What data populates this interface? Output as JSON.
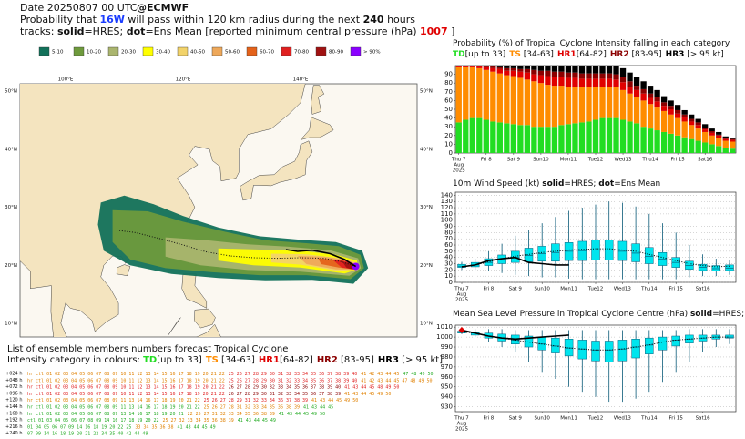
{
  "header": {
    "date": "Date 20250807 00 UTC",
    "source": "@ECMWF",
    "lines": [
      [
        {
          "text": "Probability that "
        },
        {
          "text": "16W",
          "bold": true,
          "color": "#1a3cff"
        },
        {
          "text": " will pass within 120 km radius during the next "
        },
        {
          "text": "240",
          "bold": true
        },
        {
          "text": " hours"
        }
      ],
      [
        {
          "text": "tracks: "
        },
        {
          "text": "solid",
          "bold": true
        },
        {
          "text": "=HRES; "
        },
        {
          "text": "dot",
          "bold": true
        },
        {
          "text": "=Ens Mean [reported minimum central pressure (hPa) "
        },
        {
          "text": "1007",
          "bold": true,
          "color": "#e00000"
        },
        {
          "text": " ]"
        }
      ]
    ]
  },
  "legend": [
    {
      "label": "5-10",
      "color": "#12715a"
    },
    {
      "label": "10-20",
      "color": "#6e9a3c"
    },
    {
      "label": "20-30",
      "color": "#aab56e"
    },
    {
      "label": "30-40",
      "color": "#ffff00"
    },
    {
      "label": "40-50",
      "color": "#f2d36a"
    },
    {
      "label": "50-60",
      "color": "#eea85a"
    },
    {
      "label": "60-70",
      "color": "#e4621a"
    },
    {
      "label": "70-80",
      "color": "#e02020"
    },
    {
      "label": "80-90",
      "color": "#a01212"
    },
    {
      "label": "> 90%",
      "color": "#8a00ff"
    }
  ],
  "map": {
    "lon_labels": [
      "100°E",
      "120°E",
      "140°E"
    ],
    "lat_labels": [
      "50°N",
      "40°N",
      "30°N",
      "20°N",
      "10°N"
    ]
  },
  "members_list": {
    "title": "List of ensemble members numbers forecast Tropical Cyclone",
    "legend_label": "Intensity category in colours: ",
    "rows": [
      {
        "lead": "+024 h",
        "segments": [
          {
            "text": "hr ctl 01 02 03 04 05 06 07 08 09 10 11 12 13 14 15 16 17 18 19 20 21 22",
            "color": "#e08000"
          },
          {
            "text": "25 26 27 28 29 30 31 32 33 34 35 36 37 38 39 40",
            "color": "#e02020"
          },
          {
            "text": "41 42 43 44 45",
            "color": "#e08000"
          },
          {
            "text": "47 48 49 50",
            "color": "#22aa22"
          }
        ]
      },
      {
        "lead": "+048 h",
        "segments": [
          {
            "text": "hr ctl 01 02 03 04 05 06 07 08 09 10 11 12 13 14 15 16 17 18 19 20 21 22",
            "color": "#e08000"
          },
          {
            "text": "25 26 27 28 29 30 31 32 33 34 35 36 37 38 39 40",
            "color": "#e02020"
          },
          {
            "text": "41 42 43 44 45 47 48 49 50",
            "color": "#e08000"
          }
        ]
      },
      {
        "lead": "+072 h",
        "segments": [
          {
            "text": "hr ctl 01 02 03 04 05 06 07 08 09 10 11 12 13 14 15 16 17 18 19 20 21 22",
            "color": "#e02020"
          },
          {
            "text": "26 27 28 29 30 32 33 34 35 36 37 38 39 40",
            "color": "#8b0000"
          },
          {
            "text": "41 43 44 45 48 49 50",
            "color": "#e02020"
          }
        ]
      },
      {
        "lead": "+096 h",
        "segments": [
          {
            "text": "hr ctl 01 02 03 04 05 06 07 08 09 10 11 12 13 14 15 16 17 18 19 20 21 22",
            "color": "#e02020"
          },
          {
            "text": "26 27 28 29 30 31 32 33 34 35 36 37 38 39",
            "color": "#8b0000"
          },
          {
            "text": "41 43 44 45 49 50",
            "color": "#e08000"
          }
        ]
      },
      {
        "lead": "+120 h",
        "segments": [
          {
            "text": "hr ctl 01 02 03 04 05 06 07 08 09 11 13 14 16 17 18 19 20 21 22",
            "color": "#e08000"
          },
          {
            "text": "25 26 27 28 29 31 32 33 34 36 37 38 39",
            "color": "#e02020"
          },
          {
            "text": "41 43 44 45 49 50",
            "color": "#e08000"
          }
        ]
      },
      {
        "lead": "+144 h",
        "segments": [
          {
            "text": "hr ctl 01 02 03 04 05 06 07 08 09 11 13 14 16 17 18 19 20 21 22",
            "color": "#22aa22"
          },
          {
            "text": "25 26 27 28 31 32 33 34 35 36 38 39",
            "color": "#e08000"
          },
          {
            "text": "41 43 44 45",
            "color": "#22aa22"
          }
        ]
      },
      {
        "lead": "+168 h",
        "segments": [
          {
            "text": "hr ctl 01 02 03 04 05 06 07 08 09 13 14 16 17 18 19 20 21",
            "color": "#22aa22"
          },
          {
            "text": "22 25 27 31 32 33 34 35 36 38 39",
            "color": "#e08000"
          },
          {
            "text": "41 43 44 45 49 50",
            "color": "#22aa22"
          }
        ]
      },
      {
        "lead": "+192 h",
        "segments": [
          {
            "text": "ctl 01 03 04 05 06 07 08 09 14 16 17 18 19 20 22",
            "color": "#22aa22"
          },
          {
            "text": "25 27 32 33 34 35 36 38 39",
            "color": "#e08000"
          },
          {
            "text": "41 43 44 45 49",
            "color": "#22aa22"
          }
        ]
      },
      {
        "lead": "+216 h",
        "segments": [
          {
            "text": "01 04 05 06 07 09 14 16 18 19 20 22 25",
            "color": "#22aa22"
          },
          {
            "text": "33 34 35 36 38",
            "color": "#e08000"
          },
          {
            "text": "41 43 44 45 49",
            "color": "#22aa22"
          }
        ]
      },
      {
        "lead": "+240 h",
        "segments": [
          {
            "text": "07 09 14 16 18 19 20 21 22 34 35 40 42 44 49",
            "color": "#22aa22"
          }
        ]
      }
    ]
  },
  "chart_data": [
    {
      "type": "stacked_bar",
      "title_runs": [
        {
          "text": "Probability (%) of Tropical Cyclone Intensity falling in each category"
        }
      ],
      "categories": [
        "Thu 7",
        null,
        null,
        null,
        "Fri 8",
        null,
        null,
        null,
        "Sat 9",
        null,
        null,
        null,
        "Sun10",
        null,
        null,
        null,
        "Mon11",
        null,
        null,
        null,
        "Tue12",
        null,
        null,
        null,
        "Wed13",
        null,
        null,
        null,
        "Thu14",
        null,
        null,
        null,
        "Fri 15",
        null,
        null,
        null,
        "Sat16",
        null,
        null,
        null,
        null
      ],
      "date_sublabels": [
        "Aug",
        "2025"
      ],
      "highlight_categories": [
        "Sun10"
      ],
      "highlight_color": "#ff0000",
      "ylim": [
        0,
        100
      ],
      "yticks": [
        0,
        10,
        20,
        30,
        40,
        50,
        60,
        70,
        80,
        90
      ],
      "grid": false,
      "series": [
        {
          "name": "TD",
          "range": "[up to 33]",
          "color": "#22dd22",
          "values": [
            35,
            38,
            40,
            40,
            38,
            36,
            35,
            34,
            33,
            32,
            32,
            30,
            30,
            30,
            30,
            32,
            33,
            34,
            35,
            36,
            38,
            40,
            40,
            40,
            38,
            36,
            34,
            30,
            28,
            26,
            24,
            22,
            20,
            18,
            16,
            14,
            12,
            10,
            8,
            6,
            5
          ]
        },
        {
          "name": "TS",
          "range": " [34-63]",
          "color": "#ff8c00",
          "values": [
            63,
            60,
            58,
            57,
            57,
            57,
            56,
            55,
            55,
            54,
            52,
            52,
            50,
            48,
            47,
            45,
            43,
            42,
            40,
            39,
            38,
            36,
            36,
            35,
            34,
            32,
            30,
            30,
            28,
            26,
            24,
            22,
            20,
            18,
            16,
            14,
            12,
            10,
            9,
            8,
            8
          ]
        },
        {
          "name": "HR1",
          "range": "[64-82]",
          "color": "#e00000",
          "values": [
            2,
            2,
            2,
            3,
            3,
            4,
            5,
            5,
            6,
            7,
            8,
            8,
            9,
            10,
            10,
            10,
            10,
            10,
            10,
            10,
            9,
            9,
            9,
            9,
            9,
            8,
            8,
            8,
            7,
            7,
            6,
            6,
            5,
            5,
            4,
            4,
            3,
            3,
            3,
            2,
            2
          ]
        },
        {
          "name": "HR2",
          "range": " [83-95]",
          "color": "#8b0000",
          "values": [
            0,
            0,
            0,
            0,
            1,
            2,
            2,
            3,
            3,
            3,
            4,
            5,
            5,
            6,
            6,
            6,
            6,
            6,
            6,
            6,
            6,
            6,
            6,
            6,
            6,
            6,
            5,
            5,
            5,
            5,
            4,
            4,
            4,
            3,
            3,
            3,
            2,
            2,
            1,
            1,
            1
          ]
        },
        {
          "name": "HR3",
          "range": " [> 95 kt]",
          "color": "#000000",
          "values": [
            0,
            0,
            0,
            0,
            1,
            1,
            2,
            3,
            3,
            4,
            4,
            5,
            6,
            6,
            7,
            7,
            8,
            8,
            9,
            9,
            9,
            9,
            9,
            10,
            10,
            10,
            10,
            9,
            9,
            8,
            7,
            6,
            6,
            5,
            5,
            4,
            4,
            3,
            3,
            2,
            1
          ]
        }
      ]
    },
    {
      "type": "box",
      "title_runs": [
        {
          "text": "10m Wind Speed (kt) "
        },
        {
          "text": "solid",
          "bold": true
        },
        {
          "text": "=HRES; "
        },
        {
          "text": "dot",
          "bold": true
        },
        {
          "text": "=Ens Mean"
        }
      ],
      "categories": [
        "Thu 7",
        null,
        "Fri 8",
        null,
        "Sat 9",
        null,
        "Sun10",
        null,
        "Mon11",
        null,
        "Tue12",
        null,
        "Wed13",
        null,
        "Thu14",
        null,
        "Fri 15",
        null,
        "Sat16",
        null,
        null
      ],
      "date_sublabels": [
        "Aug",
        "2025"
      ],
      "highlight_categories": [
        "Sun10"
      ],
      "highlight_color": "#ff0000",
      "ylim": [
        0,
        145
      ],
      "yticks": [
        0,
        10,
        20,
        30,
        40,
        50,
        60,
        70,
        80,
        90,
        100,
        110,
        120,
        130,
        140
      ],
      "grid": true,
      "box": {
        "color": "#00e5ee",
        "min": [
          20,
          20,
          18,
          15,
          12,
          10,
          8,
          8,
          6,
          5,
          5,
          5,
          5,
          5,
          5,
          5,
          5,
          8,
          10,
          10,
          12
        ],
        "q1": [
          24,
          25,
          27,
          30,
          32,
          33,
          34,
          34,
          35,
          35,
          36,
          36,
          35,
          33,
          30,
          27,
          24,
          21,
          19,
          18,
          19
        ],
        "median": [
          26,
          28,
          32,
          36,
          40,
          43,
          46,
          48,
          50,
          51,
          52,
          52,
          50,
          47,
          42,
          37,
          32,
          27,
          24,
          22,
          23
        ],
        "q3": [
          29,
          32,
          38,
          44,
          50,
          55,
          58,
          62,
          64,
          66,
          68,
          68,
          66,
          62,
          56,
          48,
          40,
          34,
          29,
          27,
          28
        ],
        "max": [
          33,
          38,
          50,
          62,
          75,
          85,
          95,
          105,
          115,
          120,
          125,
          130,
          128,
          122,
          110,
          95,
          80,
          60,
          45,
          38,
          36
        ]
      },
      "series": [
        {
          "style": "solid",
          "color": "#000000",
          "values": [
            25,
            28,
            35,
            38,
            40,
            32,
            30,
            28,
            28,
            null,
            null,
            null,
            null,
            null,
            null,
            null,
            null,
            null,
            null,
            null,
            null
          ]
        },
        {
          "style": "dot",
          "color": "#000000",
          "values": [
            25,
            28,
            33,
            38,
            42,
            45,
            48,
            50,
            52,
            53,
            54,
            54,
            52,
            50,
            45,
            40,
            35,
            30,
            27,
            25,
            26
          ]
        }
      ]
    },
    {
      "type": "box",
      "title_runs": [
        {
          "text": "Mean Sea Level Pressure in Tropical Cyclone Centre (hPa) "
        },
        {
          "text": "solid",
          "bold": true
        },
        {
          "text": "=HRES; "
        },
        {
          "text": "dot",
          "bold": true
        },
        {
          "text": "=Ens Mean"
        }
      ],
      "categories": [
        "Thu 7",
        null,
        "Fri 8",
        null,
        "Sat 9",
        null,
        "Sun10",
        null,
        "Mon11",
        null,
        "Tue12",
        null,
        "Wed13",
        null,
        "Thu14",
        null,
        "Fri 15",
        null,
        "Sat16",
        null,
        null
      ],
      "date_sublabels": [
        "Aug",
        "2025"
      ],
      "highlight_categories": [
        "Sun10"
      ],
      "highlight_color": "#ff0000",
      "ylim": [
        925,
        1012
      ],
      "yticks": [
        930,
        940,
        950,
        960,
        970,
        980,
        990,
        1000,
        1010
      ],
      "grid": true,
      "observed": 1007,
      "observed_color": "#e00000",
      "box": {
        "color": "#00e5ee",
        "min": [
          1003,
          1000,
          995,
          990,
          985,
          975,
          965,
          958,
          950,
          945,
          940,
          935,
          935,
          938,
          945,
          955,
          965,
          975,
          985,
          990,
          993
        ],
        "q1": [
          1004,
          1002,
          999,
          996,
          993,
          990,
          987,
          984,
          981,
          978,
          976,
          975,
          976,
          979,
          983,
          987,
          991,
          994,
          996,
          998,
          999
        ],
        "median": [
          1005,
          1004,
          1001,
          999,
          997,
          995,
          993,
          991,
          989,
          988,
          987,
          987,
          988,
          990,
          992,
          995,
          997,
          998,
          999,
          1000,
          1000
        ],
        "q3": [
          1006,
          1005,
          1004,
          1003,
          1002,
          1001,
          1000,
          999,
          998,
          997,
          996,
          996,
          997,
          998,
          999,
          1000,
          1001,
          1002,
          1002,
          1002,
          1002
        ],
        "max": [
          1008,
          1008,
          1008,
          1008,
          1007,
          1007,
          1007,
          1007,
          1007,
          1007,
          1007,
          1007,
          1007,
          1007,
          1007,
          1007,
          1007,
          1008,
          1008,
          1008,
          1008
        ]
      },
      "series": [
        {
          "style": "solid",
          "color": "#000000",
          "values": [
            1007,
            1004,
            1001,
            999,
            998,
            999,
            1000,
            1001,
            1002,
            null,
            null,
            null,
            null,
            null,
            null,
            null,
            null,
            null,
            null,
            null,
            null
          ]
        },
        {
          "style": "dot",
          "color": "#000000",
          "values": [
            1005,
            1004,
            1001,
            999,
            997,
            995,
            993,
            991,
            989,
            988,
            987,
            987,
            988,
            990,
            992,
            995,
            997,
            998,
            999,
            1000,
            1000
          ]
        }
      ]
    }
  ]
}
